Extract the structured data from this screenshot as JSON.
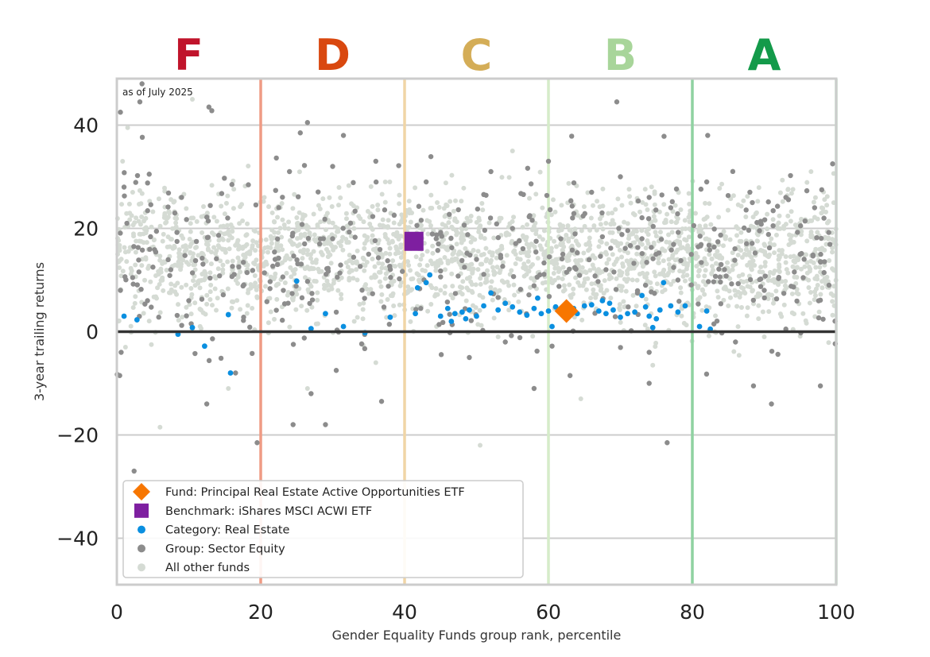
{
  "chart_data": {
    "type": "scatter",
    "note": "as of July 2025",
    "xlabel": "Gender Equality Funds group rank, percentile",
    "ylabel": "3-year trailing returns",
    "xlim": [
      0,
      100
    ],
    "ylim": [
      -49,
      49
    ],
    "x_ticks": [
      "0",
      "20",
      "40",
      "60",
      "80",
      "100"
    ],
    "y_ticks": [
      "40",
      "20",
      "0",
      "−20",
      "−40"
    ],
    "grid": "horizontal",
    "legend_position": "bottom-left",
    "grades": [
      {
        "label": "F",
        "center": 10,
        "color": "#c0142b"
      },
      {
        "label": "D",
        "center": 30,
        "color": "#d9480f"
      },
      {
        "label": "C",
        "center": 50,
        "color": "#d4ad57"
      },
      {
        "label": "B",
        "center": 70,
        "color": "#a8d59a"
      },
      {
        "label": "A",
        "center": 90,
        "color": "#139a4a"
      }
    ],
    "boundaries": [
      {
        "x": 20,
        "color": "#ef9b84"
      },
      {
        "x": 40,
        "color": "#f0d5a6"
      },
      {
        "x": 60,
        "color": "#d5ecc9"
      },
      {
        "x": 80,
        "color": "#8fd2a1"
      },
      {
        "x": 100,
        "color": "#b6e3c3"
      }
    ],
    "series": [
      {
        "name": "All other funds",
        "marker": "dot",
        "color": "#d5dbd4",
        "size": 3,
        "generated": true,
        "points": [
          [
            0.8,
            33
          ],
          [
            1.5,
            39.5
          ],
          [
            2.2,
            27
          ],
          [
            10.5,
            45
          ],
          [
            14,
            6.5
          ],
          [
            20.5,
            26
          ],
          [
            36,
            -6
          ],
          [
            41,
            23
          ],
          [
            50.5,
            -22
          ],
          [
            55,
            35
          ],
          [
            64.5,
            -13
          ],
          [
            74.5,
            -6.5
          ],
          [
            96.5,
            31
          ],
          [
            98,
            24
          ],
          [
            6,
            -18.5
          ],
          [
            26.5,
            -11
          ],
          [
            1.2,
            -3
          ],
          [
            4.8,
            -2.5
          ],
          [
            15.5,
            -11
          ],
          [
            33,
            2
          ],
          [
            53,
            -1
          ],
          [
            85,
            5
          ],
          [
            90,
            -1
          ]
        ]
      },
      {
        "name": "Group: Sector Equity",
        "marker": "dot",
        "color": "#8c8c8c",
        "size": 3.2,
        "points": [
          [
            0.5,
            42.5
          ],
          [
            3.5,
            48
          ],
          [
            3.2,
            44.5
          ],
          [
            2.4,
            -27
          ],
          [
            12.8,
            43.5
          ],
          [
            13.2,
            42.8
          ],
          [
            25.5,
            38.5
          ],
          [
            26.5,
            40.5
          ],
          [
            31.5,
            38
          ],
          [
            4.5,
            30.5
          ],
          [
            1,
            28
          ],
          [
            9,
            26
          ],
          [
            16,
            28.5
          ],
          [
            24,
            31
          ],
          [
            30,
            32
          ],
          [
            36,
            33
          ],
          [
            43,
            29
          ],
          [
            52,
            31
          ],
          [
            60,
            33
          ],
          [
            66,
            27
          ],
          [
            70,
            30
          ],
          [
            74,
            26
          ],
          [
            77,
            24
          ],
          [
            82,
            29
          ],
          [
            88,
            27
          ],
          [
            93,
            26
          ],
          [
            97,
            24
          ],
          [
            99.5,
            32.5
          ],
          [
            69.5,
            44.5
          ],
          [
            19.5,
            -21.5
          ],
          [
            24.5,
            -18
          ],
          [
            29,
            -18
          ],
          [
            27,
            -12
          ],
          [
            30.5,
            -7.5
          ],
          [
            36.8,
            -13.5
          ],
          [
            16.5,
            -8
          ],
          [
            12.5,
            -14
          ],
          [
            49,
            -5
          ],
          [
            54,
            -2
          ],
          [
            58,
            -11
          ],
          [
            60.5,
            -2.8
          ],
          [
            63,
            -8.5
          ],
          [
            74,
            -4
          ],
          [
            74,
            -10
          ],
          [
            76.5,
            -21.5
          ],
          [
            88.5,
            -10.5
          ],
          [
            91,
            -14
          ],
          [
            97.8,
            -10.5
          ],
          [
            86,
            -2
          ],
          [
            93,
            0.5
          ],
          [
            83,
            1.5
          ],
          [
            10,
            6
          ],
          [
            0.5,
            8
          ],
          [
            0.4,
            -8.5
          ],
          [
            0.6,
            -4
          ],
          [
            7.5,
            12
          ],
          [
            22,
            14
          ],
          [
            30,
            18
          ],
          [
            35,
            15
          ],
          [
            45,
            19
          ],
          [
            50,
            14
          ],
          [
            55,
            20
          ],
          [
            62,
            15
          ],
          [
            68,
            12
          ],
          [
            73,
            18
          ],
          [
            78,
            10
          ],
          [
            84,
            13
          ],
          [
            90,
            8
          ],
          [
            95,
            15
          ],
          [
            99,
            9
          ]
        ]
      },
      {
        "name": "Category: Real Estate",
        "marker": "dot",
        "color": "#0a8fe0",
        "size": 3.4,
        "points": [
          [
            1,
            3
          ],
          [
            2.8,
            2.3
          ],
          [
            8.5,
            -0.5
          ],
          [
            10.5,
            0.8
          ],
          [
            12.2,
            -2.8
          ],
          [
            15.5,
            3.3
          ],
          [
            15.8,
            -8
          ],
          [
            25,
            9.8
          ],
          [
            27,
            0.6
          ],
          [
            29,
            3.5
          ],
          [
            31.5,
            1
          ],
          [
            34.5,
            -0.2
          ],
          [
            38,
            2.8
          ],
          [
            41.5,
            3.5
          ],
          [
            41.8,
            8.5
          ],
          [
            43,
            9.5
          ],
          [
            43.5,
            11
          ],
          [
            45,
            3
          ],
          [
            46,
            4.5
          ],
          [
            46.5,
            2
          ],
          [
            47,
            3.5
          ],
          [
            48,
            3.8
          ],
          [
            48.5,
            2.5
          ],
          [
            49,
            4.2
          ],
          [
            50,
            3
          ],
          [
            51,
            5
          ],
          [
            52,
            7.5
          ],
          [
            53,
            4.2
          ],
          [
            54,
            5.5
          ],
          [
            55,
            4.8
          ],
          [
            56,
            3.8
          ],
          [
            57,
            3.2
          ],
          [
            58,
            4.5
          ],
          [
            58.5,
            6.5
          ],
          [
            59,
            3.5
          ],
          [
            60,
            4
          ],
          [
            60.5,
            1
          ],
          [
            61,
            4.8
          ],
          [
            62,
            3.2
          ],
          [
            63.5,
            4.5
          ],
          [
            64,
            3.5
          ],
          [
            65,
            5
          ],
          [
            66,
            5.2
          ],
          [
            67,
            4
          ],
          [
            67.5,
            6
          ],
          [
            68,
            3.5
          ],
          [
            68.5,
            5.5
          ],
          [
            69,
            4.2
          ],
          [
            70,
            2.8
          ],
          [
            71,
            3.5
          ],
          [
            72,
            3.8
          ],
          [
            73,
            7
          ],
          [
            73.5,
            4.8
          ],
          [
            74,
            3
          ],
          [
            74.5,
            0.8
          ],
          [
            75,
            2.5
          ],
          [
            75.5,
            4.2
          ],
          [
            76,
            9.5
          ],
          [
            77,
            5
          ],
          [
            78,
            3.8
          ],
          [
            79,
            5
          ],
          [
            81,
            1
          ],
          [
            82,
            4
          ],
          [
            82.5,
            0.5
          ]
        ]
      },
      {
        "name": "Benchmark: iShares MSCI ACWI ETF",
        "marker": "square",
        "color": "#7e1fa0",
        "size": 12,
        "points": [
          [
            41.3,
            17.5
          ]
        ]
      },
      {
        "name": "Fund: Principal Real Estate Active Opportunities ETF",
        "marker": "diamond",
        "color": "#f77600",
        "size": 15,
        "points": [
          [
            62.5,
            4
          ]
        ]
      }
    ]
  }
}
